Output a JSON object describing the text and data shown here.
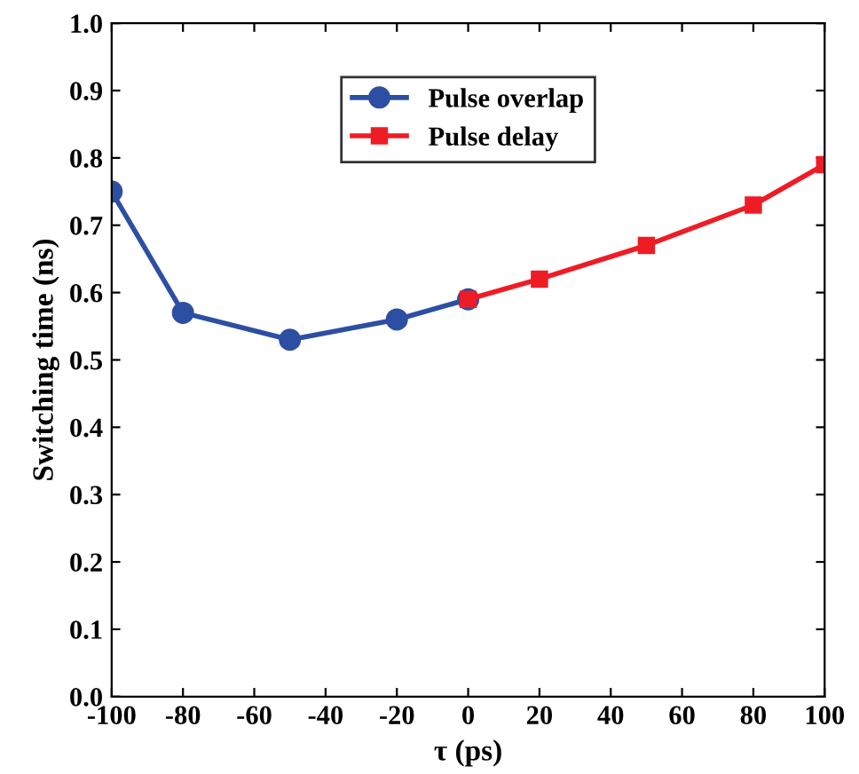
{
  "chart_data": {
    "type": "line",
    "xlabel": "τ (ps)",
    "ylabel": "Switching time (ns)",
    "series": [
      {
        "name": "Pulse overlap",
        "color": "#2d4fa3",
        "marker": "circle",
        "x": [
          -100,
          -80,
          -50,
          -20,
          0
        ],
        "values": [
          0.75,
          0.57,
          0.53,
          0.56,
          0.59
        ]
      },
      {
        "name": "Pulse delay",
        "color": "#ee1c25",
        "marker": "square",
        "x": [
          0,
          20,
          50,
          80,
          100
        ],
        "values": [
          0.59,
          0.62,
          0.67,
          0.73,
          0.79
        ]
      }
    ],
    "xlim": [
      -100,
      100
    ],
    "xticks": [
      -100,
      -80,
      -60,
      -40,
      -20,
      0,
      20,
      40,
      60,
      80,
      100
    ],
    "ylim": [
      0.0,
      1.0
    ],
    "yticks": [
      {
        "value": 0,
        "label": "0.0"
      },
      0.1,
      0.2,
      0.3,
      0.4,
      0.5,
      0.6,
      0.7,
      0.8,
      0.9,
      {
        "value": 1,
        "label": "1.0"
      }
    ],
    "grid": false,
    "legend": "top",
    "line_style": "solid"
  }
}
